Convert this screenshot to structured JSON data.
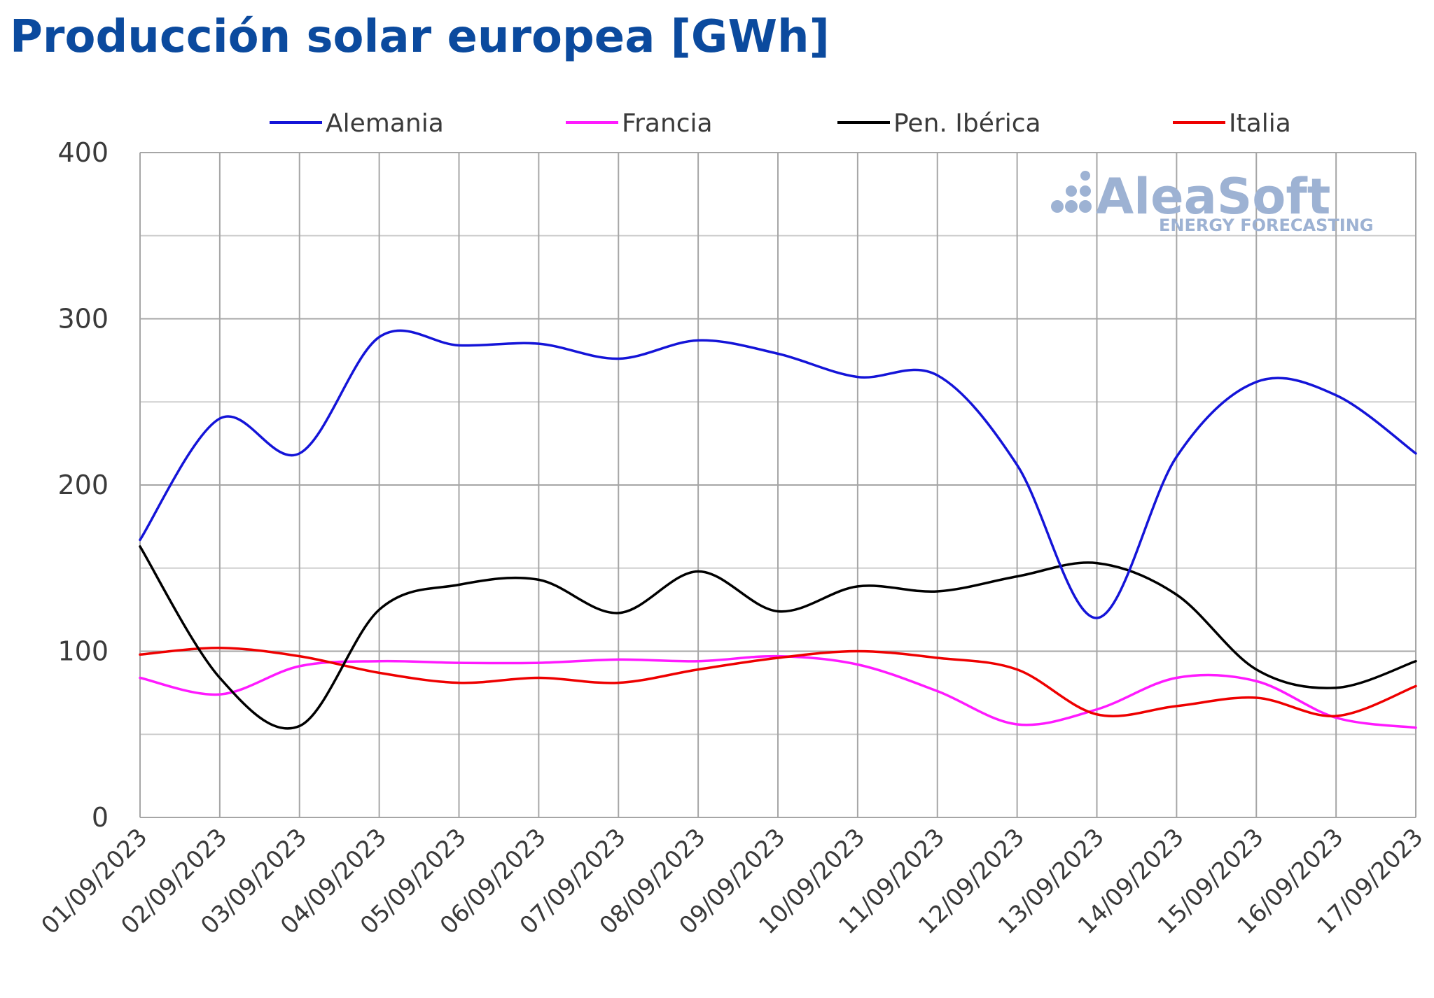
{
  "title": "Producción solar europea [GWh]",
  "watermark": {
    "brand": "AleaSoft",
    "tagline": "ENERGY FORECASTING"
  },
  "chart_data": {
    "type": "line",
    "title": "Producción solar europea [GWh]",
    "xlabel": "",
    "ylabel": "",
    "ylim": [
      0,
      400
    ],
    "yticks": [
      0,
      100,
      200,
      300,
      400
    ],
    "grid": true,
    "legend_position": "top",
    "categories": [
      "01/09/2023",
      "02/09/2023",
      "03/09/2023",
      "04/09/2023",
      "05/09/2023",
      "06/09/2023",
      "07/09/2023",
      "08/09/2023",
      "09/09/2023",
      "10/09/2023",
      "11/09/2023",
      "12/09/2023",
      "13/09/2023",
      "14/09/2023",
      "15/09/2023",
      "16/09/2023",
      "17/09/2023"
    ],
    "series": [
      {
        "name": "Alemania",
        "color": "#1414d8",
        "values": [
          167,
          240,
          219,
          289,
          284,
          285,
          276,
          287,
          279,
          265,
          266,
          212,
          120,
          217,
          262,
          254,
          219
        ]
      },
      {
        "name": "Francia",
        "color": "#ff1aff",
        "values": [
          84,
          74,
          91,
          94,
          93,
          93,
          95,
          94,
          97,
          92,
          76,
          56,
          65,
          84,
          82,
          60,
          54
        ]
      },
      {
        "name": "Pen. Ibérica",
        "color": "#000000",
        "values": [
          163,
          84,
          55,
          125,
          140,
          143,
          123,
          148,
          124,
          139,
          136,
          145,
          153,
          134,
          89,
          78,
          94
        ]
      },
      {
        "name": "Italia",
        "color": "#ee0000",
        "values": [
          98,
          102,
          97,
          87,
          81,
          84,
          81,
          89,
          96,
          100,
          96,
          89,
          62,
          67,
          72,
          61,
          79
        ]
      }
    ]
  }
}
